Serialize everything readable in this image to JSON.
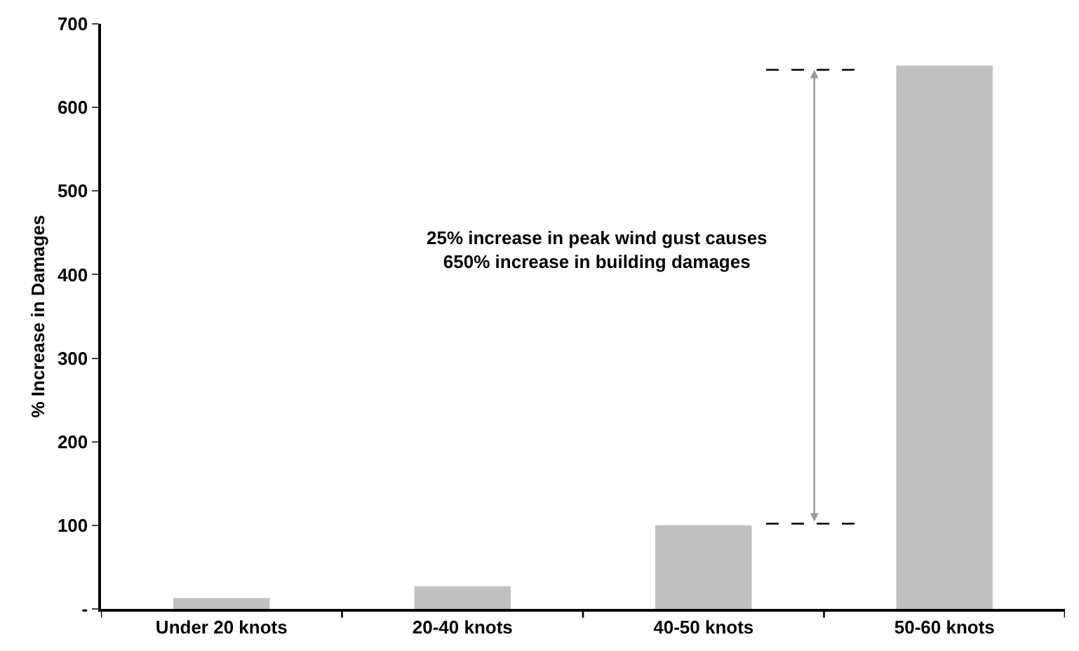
{
  "chart_data": {
    "type": "bar",
    "ylabel": "% Increase in Damages",
    "categories": [
      "Under 20 knots",
      "20-40 knots",
      "40-50 knots",
      "50-60 knots"
    ],
    "values": [
      13,
      27,
      100,
      650
    ],
    "color": "#c0c0c0",
    "ylim": [
      0,
      700
    ],
    "yticks": [
      {
        "value": 0,
        "label": "-"
      },
      100,
      200,
      300,
      400,
      500,
      600,
      700
    ],
    "annotations": [
      "25% increase in peak wind gust causes\n650% increase in building damages"
    ],
    "ref_lines": [
      {
        "axis": "y",
        "value": 645,
        "color": "#000000",
        "line_style": "dashed"
      },
      {
        "axis": "y",
        "value": 102,
        "color": "#000000",
        "line_style": "dashed"
      }
    ]
  }
}
